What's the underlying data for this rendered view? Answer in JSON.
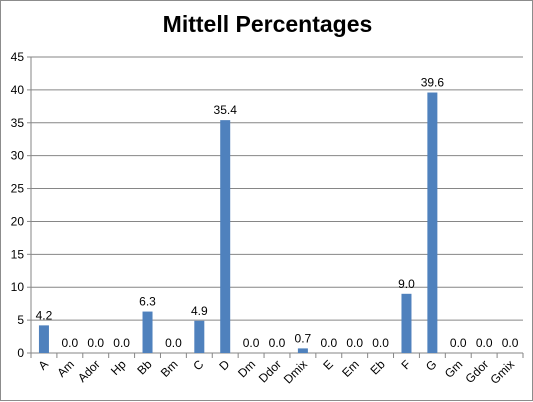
{
  "chart_data": {
    "type": "bar",
    "title": "Mittell Percentages",
    "xlabel": "",
    "ylabel": "",
    "categories": [
      "A",
      "Am",
      "Ador",
      "Hp",
      "Bb",
      "Bm",
      "C",
      "D",
      "Dm",
      "Ddor",
      "Dmix",
      "E",
      "Em",
      "Eb",
      "F",
      "G",
      "Gm",
      "Gdor",
      "Gmix"
    ],
    "values": [
      4.2,
      0.0,
      0.0,
      0.0,
      6.3,
      0.0,
      4.9,
      35.4,
      0.0,
      0.0,
      0.7,
      0.0,
      0.0,
      0.0,
      9.0,
      39.6,
      0.0,
      0.0,
      0.0
    ],
    "data_labels": [
      "4.2",
      "0.0",
      "0.0",
      "0.0",
      "6.3",
      "0.0",
      "4.9",
      "35.4",
      "0.0",
      "0.0",
      "0.7",
      "0.0",
      "0.0",
      "0.0",
      "9.0",
      "39.6",
      "0.0",
      "0.0",
      "0.0"
    ],
    "ylim": [
      0,
      45
    ],
    "yticks": [
      "0",
      "5",
      "10",
      "15",
      "20",
      "25",
      "30",
      "35",
      "40",
      "45"
    ],
    "grid": true,
    "legend": "none",
    "bar_color": "#4f81bd",
    "grid_color": "#868686"
  }
}
